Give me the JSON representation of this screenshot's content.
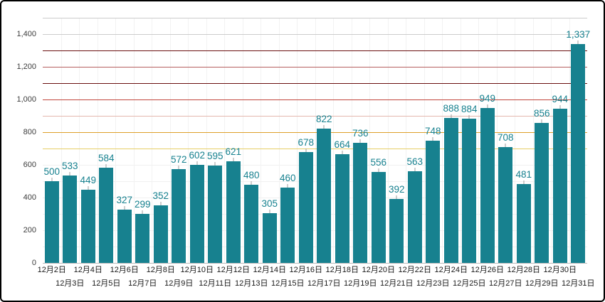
{
  "chart_data": {
    "type": "bar",
    "title": "",
    "xlabel": "",
    "ylabel": "",
    "legend_position": "none",
    "categories": [
      "12月2日",
      "12月3日",
      "12月4日",
      "12月5日",
      "12月6日",
      "12月7日",
      "12月8日",
      "12月9日",
      "12月10日",
      "12月11日",
      "12月12日",
      "12月13日",
      "12月14日",
      "12月15日",
      "12月16日",
      "12月17日",
      "12月18日",
      "12月19日",
      "12月20日",
      "12月21日",
      "12月22日",
      "12月23日",
      "12月24日",
      "12月25日",
      "12月26日",
      "12月27日",
      "12月28日",
      "12月29日",
      "12月30日",
      "12月31日"
    ],
    "values": [
      500,
      533,
      449,
      584,
      327,
      299,
      352,
      572,
      602,
      595,
      621,
      480,
      305,
      460,
      678,
      822,
      664,
      736,
      556,
      392,
      563,
      748,
      888,
      884,
      949,
      708,
      481,
      856,
      944,
      1337
    ],
    "ylim": [
      0,
      1500
    ],
    "y_ticks": [
      0,
      200,
      400,
      600,
      800,
      1000,
      1200,
      1400
    ],
    "reference_lines": [
      {
        "value": 1500,
        "color": "#cccccc"
      },
      {
        "value": 1400,
        "color": "#cccccc"
      },
      {
        "value": 1300,
        "color": "#6b0f0f"
      },
      {
        "value": 1200,
        "color": "#b55f5f"
      },
      {
        "value": 1100,
        "color": "#6b0f0f"
      },
      {
        "value": 1000,
        "color": "#c0443a"
      },
      {
        "value": 900,
        "color": "#e4b7ad"
      },
      {
        "value": 800,
        "color": "#dda02a"
      },
      {
        "value": 700,
        "color": "#e6cd66"
      }
    ],
    "minor_gridlines": [
      100,
      200,
      300,
      400,
      500,
      600
    ],
    "minor_grid_color": "#f0f0f0",
    "bar_color": "#17818f",
    "label_color": "#17818f",
    "grid": "on"
  }
}
